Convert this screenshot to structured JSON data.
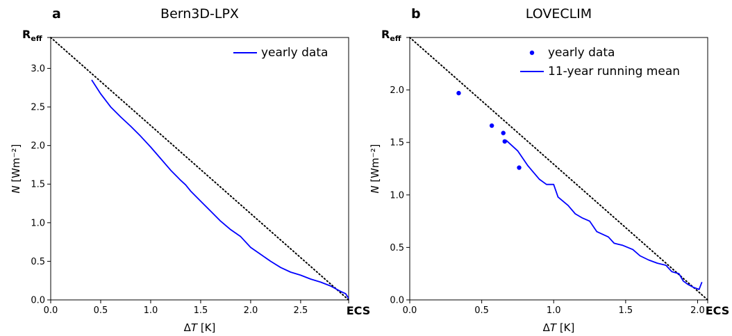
{
  "chart_data": [
    {
      "panel_label": "a",
      "title": "Bern3D-LPX",
      "type": "line",
      "xlabel": "ΔT [K]",
      "ylabel": "N [Wm⁻²]",
      "xlim": [
        0,
        2.98
      ],
      "ylim": [
        0,
        3.4
      ],
      "xticks": [
        "0.0",
        "0.5",
        "1.0",
        "1.5",
        "2.0",
        "2.5"
      ],
      "yticks": [
        "0.0",
        "0.5",
        "1.0",
        "1.5",
        "2.0",
        "2.5",
        "3.0"
      ],
      "x_marker": {
        "value": 2.98,
        "label": "ECS"
      },
      "y_marker": {
        "value": 3.4,
        "label": "R",
        "sub": "eff"
      },
      "reference_line": {
        "style": "dotted",
        "from": [
          0,
          3.4
        ],
        "to": [
          2.98,
          0
        ]
      },
      "legend_position": "upper right",
      "series": [
        {
          "name": "yearly data",
          "style": "line",
          "color": "#0000ff",
          "x": [
            0.41,
            0.5,
            0.6,
            0.7,
            0.8,
            0.9,
            1.0,
            1.1,
            1.2,
            1.3,
            1.35,
            1.4,
            1.5,
            1.6,
            1.7,
            1.8,
            1.9,
            2.0,
            2.1,
            2.2,
            2.3,
            2.4,
            2.5,
            2.6,
            2.7,
            2.8,
            2.9,
            2.95,
            2.98
          ],
          "y": [
            2.85,
            2.67,
            2.5,
            2.37,
            2.25,
            2.12,
            1.98,
            1.83,
            1.68,
            1.55,
            1.49,
            1.41,
            1.28,
            1.15,
            1.02,
            0.91,
            0.82,
            0.68,
            0.59,
            0.5,
            0.42,
            0.36,
            0.32,
            0.27,
            0.23,
            0.18,
            0.11,
            0.08,
            0.02
          ]
        }
      ]
    },
    {
      "panel_label": "b",
      "title": "LOVECLIM",
      "type": "line",
      "xlabel": "ΔT [K]",
      "ylabel": "N [Wm⁻²]",
      "xlim": [
        0,
        2.07
      ],
      "ylim": [
        0,
        2.5
      ],
      "xticks": [
        "0.0",
        "0.5",
        "1.0",
        "1.5",
        "2.0"
      ],
      "yticks": [
        "0.0",
        "0.5",
        "1.0",
        "1.5",
        "2.0"
      ],
      "x_marker": {
        "value": 2.07,
        "label": "ECS"
      },
      "y_marker": {
        "value": 2.5,
        "label": "R",
        "sub": "eff"
      },
      "reference_line": {
        "style": "dotted",
        "from": [
          0,
          2.5
        ],
        "to": [
          2.07,
          0
        ]
      },
      "legend_position": "upper right",
      "series": [
        {
          "name": "yearly data",
          "style": "points",
          "color": "#0000ff",
          "x": [
            0.34,
            0.57,
            0.65,
            0.66,
            0.76
          ],
          "y": [
            1.97,
            1.66,
            1.59,
            1.51,
            1.26
          ]
        },
        {
          "name": "11-year running mean",
          "style": "line",
          "color": "#0000ff",
          "x": [
            0.67,
            0.75,
            0.82,
            0.9,
            0.95,
            1.0,
            1.03,
            1.1,
            1.15,
            1.2,
            1.25,
            1.3,
            1.38,
            1.42,
            1.48,
            1.55,
            1.6,
            1.66,
            1.72,
            1.78,
            1.82,
            1.87,
            1.9,
            1.93,
            1.97,
            2.01,
            2.03
          ],
          "y": [
            1.52,
            1.42,
            1.28,
            1.15,
            1.1,
            1.1,
            0.98,
            0.9,
            0.82,
            0.78,
            0.75,
            0.65,
            0.6,
            0.54,
            0.52,
            0.48,
            0.42,
            0.38,
            0.35,
            0.33,
            0.27,
            0.25,
            0.18,
            0.15,
            0.12,
            0.1,
            0.17
          ]
        }
      ]
    }
  ]
}
